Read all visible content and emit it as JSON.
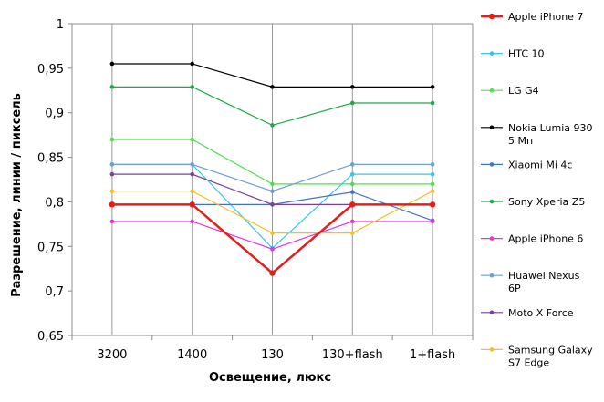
{
  "chart_data": {
    "type": "line",
    "xlabel": "Освещение,  люкс",
    "ylabel": "Разрешение,  линии / пиксель",
    "categories": [
      "3200",
      "1400",
      "130",
      "130+flash",
      "1+flash"
    ],
    "ylim": [
      0.65,
      1.0
    ],
    "yticks": [
      "0,65",
      "0,7",
      "0,75",
      "0,8",
      "0,85",
      "0,9",
      "0,95",
      "1"
    ],
    "grid": "vertical",
    "legend_position": "right",
    "series": [
      {
        "name": [
          "Apple iPhone 7"
        ],
        "color": "#e0201b",
        "emphasis": true,
        "values": [
          0.797,
          0.797,
          0.72,
          0.797,
          0.797
        ]
      },
      {
        "name": [
          "HTC 10"
        ],
        "color": "#35c7e8",
        "values": [
          0.842,
          0.842,
          0.748,
          0.831,
          0.831
        ]
      },
      {
        "name": [
          "LG G4"
        ],
        "color": "#4ee04e",
        "values": [
          0.87,
          0.87,
          0.82,
          0.82,
          0.82
        ]
      },
      {
        "name": [
          "Nokia Lumia 930",
          "5 Мп"
        ],
        "color": "#000000",
        "values": [
          0.955,
          0.955,
          0.929,
          0.929,
          0.929
        ]
      },
      {
        "name": [
          "Xiaomi Mi 4c"
        ],
        "color": "#4472c4",
        "values": [
          0.797,
          0.797,
          0.797,
          0.811,
          0.779
        ]
      },
      {
        "name": [
          "Sony Xperia Z5"
        ],
        "color": "#1fa64a",
        "values": [
          0.929,
          0.929,
          0.886,
          0.911,
          0.911
        ]
      },
      {
        "name": [
          "Apple iPhone 6"
        ],
        "color": "#e535d8",
        "values": [
          0.778,
          0.778,
          0.747,
          0.778,
          0.778
        ]
      },
      {
        "name": [
          "Huawei Nexus",
          "6P"
        ],
        "color": "#6f9fd6",
        "values": [
          0.842,
          0.842,
          0.812,
          0.842,
          0.842
        ]
      },
      {
        "name": [
          "Moto X Force"
        ],
        "color": "#7b3f9e",
        "values": [
          0.831,
          0.831,
          0.797,
          0.797,
          0.797
        ]
      },
      {
        "name": [
          "Samsung Galaxy",
          "S7 Edge"
        ],
        "color": "#f6be27",
        "values": [
          0.812,
          0.812,
          0.765,
          0.765,
          0.812
        ]
      }
    ]
  }
}
